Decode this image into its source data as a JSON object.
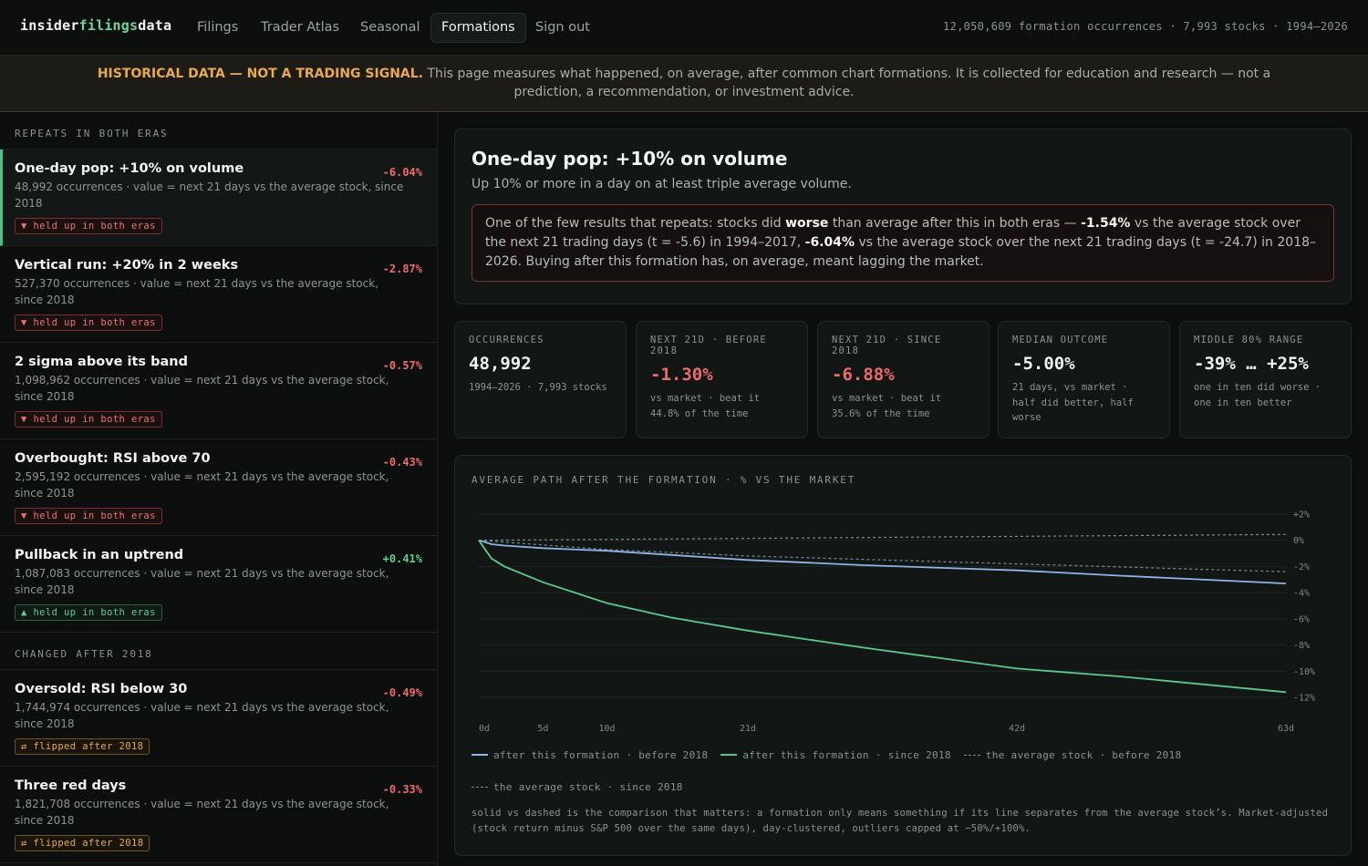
{
  "nav": {
    "logo_pre": "insider",
    "logo_mid": "filings",
    "logo_post": "data",
    "links": [
      "Filings",
      "Trader Atlas",
      "Seasonal",
      "Formations",
      "Sign out"
    ],
    "stats": "12,050,609 formation occurrences · 7,993 stocks · 1994–2026"
  },
  "banner": {
    "strong": "HISTORICAL DATA — NOT A TRADING SIGNAL.",
    "text": "This page measures what happened, on average, after common chart formations. It is collected for education and research — not a prediction, a recommendation, or investment advice."
  },
  "sidebar": {
    "section1": "REPEATS IN BOTH ERAS",
    "section2": "CHANGED AFTER 2018",
    "items": [
      {
        "name": "One-day pop: +10% on volume",
        "value": "-6.04%",
        "dir": "neg",
        "desc": "48,992 occurrences · value = next 21 days vs the average stock, since 2018",
        "tag": "▼ held up in both eras",
        "tag_color": "red"
      },
      {
        "name": "Vertical run: +20% in 2 weeks",
        "value": "-2.87%",
        "dir": "neg",
        "desc": "527,370 occurrences · value = next 21 days vs the average stock, since 2018",
        "tag": "▼ held up in both eras",
        "tag_color": "red"
      },
      {
        "name": "2 sigma above its band",
        "value": "-0.57%",
        "dir": "neg",
        "desc": "1,098,962 occurrences · value = next 21 days vs the average stock, since 2018",
        "tag": "▼ held up in both eras",
        "tag_color": "red"
      },
      {
        "name": "Overbought: RSI above 70",
        "value": "-0.43%",
        "dir": "neg",
        "desc": "2,595,192 occurrences · value = next 21 days vs the average stock, since 2018",
        "tag": "▼ held up in both eras",
        "tag_color": "red"
      },
      {
        "name": "Pullback in an uptrend",
        "value": "+0.41%",
        "dir": "pos",
        "desc": "1,087,083 occurrences · value = next 21 days vs the average stock, since 2018",
        "tag": "▲ held up in both eras",
        "tag_color": "green"
      },
      {
        "name": "Oversold: RSI below 30",
        "value": "-0.49%",
        "dir": "neg",
        "desc": "1,744,974 occurrences · value = next 21 days vs the average stock, since 2018",
        "tag": "⇄ flipped after 2018",
        "tag_color": "amber"
      },
      {
        "name": "Three red days",
        "value": "-0.33%",
        "dir": "neg",
        "desc": "1,821,708 occurrences · value = next 21 days vs the average stock, since 2018",
        "tag": "⇄ flipped after 2018",
        "tag_color": "amber"
      }
    ]
  },
  "hero": {
    "title": "One-day pop: +10% on volume",
    "subtitle": "Up 10% or more in a day on at least triple average volume.",
    "callout_1": "One of the few results that repeats: stocks did ",
    "callout_b1": "worse",
    "callout_2": " than average after this in both eras — ",
    "callout_b2": "-1.54%",
    "callout_3": " vs the average stock over the next 21 trading days (t = -5.6) in 1994–2017, ",
    "callout_b3": "-6.04%",
    "callout_4": " vs the average stock over the next 21 trading days (t = -24.7) in 2018–2026. Buying after this formation has, on average, meant lagging the market."
  },
  "stats": [
    {
      "label": "OCCURRENCES",
      "value": "48,992",
      "neg": false,
      "note": "1994–2026 · 7,993 stocks"
    },
    {
      "label": "NEXT 21D · BEFORE 2018",
      "value": "-1.30%",
      "neg": true,
      "note": "vs market · beat it 44.8% of the time"
    },
    {
      "label": "NEXT 21D · SINCE 2018",
      "value": "-6.88%",
      "neg": true,
      "note": "vs market · beat it 35.6% of the time"
    },
    {
      "label": "MEDIAN OUTCOME",
      "value": "-5.00%",
      "neg": false,
      "note": "21 days, vs market · half did better, half worse"
    },
    {
      "label": "MIDDLE 80% RANGE",
      "value": "-39% … +25%",
      "neg": false,
      "note": "one in ten did worse · one in ten better"
    }
  ],
  "chart": {
    "title": "AVERAGE PATH AFTER THE FORMATION · % VS THE MARKET",
    "footnote": "solid vs dashed is the comparison that matters: a formation only means something if its line separates from the average stock’s. Market-adjusted (stock return minus S&P 500 over the same days), day-clustered, outliers capped at −50%/+100%.",
    "colors": {
      "before": "#8fb4e8",
      "since": "#5bc98e",
      "dash": "#7b8a96",
      "grid": "#1f2724"
    }
  },
  "chart_data": {
    "type": "line",
    "title": "AVERAGE PATH AFTER THE FORMATION · % VS THE MARKET",
    "x_tick_labels": [
      "0d",
      "5d",
      "10d",
      "21d",
      "42d",
      "63d"
    ],
    "x_ticks": [
      0,
      5,
      10,
      21,
      42,
      63
    ],
    "y_tick_labels": [
      "+2%",
      "0%",
      "-2%",
      "-4%",
      "-6%",
      "-8%",
      "-10%",
      "-12%"
    ],
    "y_ticks": [
      2,
      0,
      -2,
      -4,
      -6,
      -8,
      -10,
      -12
    ],
    "xlim": [
      0,
      63
    ],
    "ylim": [
      -12,
      2
    ],
    "series": [
      {
        "name": "after this formation · before 2018",
        "style": "solid",
        "color": "#8fb4e8",
        "x": [
          0,
          1,
          2,
          5,
          10,
          21,
          30,
          42,
          50,
          63
        ],
        "y": [
          0,
          -0.3,
          -0.4,
          -0.6,
          -0.8,
          -1.5,
          -1.9,
          -2.3,
          -2.7,
          -3.3
        ]
      },
      {
        "name": "after this formation · since 2018",
        "style": "solid",
        "color": "#5bc98e",
        "x": [
          0,
          1,
          2,
          5,
          10,
          15,
          21,
          30,
          42,
          50,
          63
        ],
        "y": [
          0,
          -1.4,
          -2.0,
          -3.2,
          -4.8,
          -5.9,
          -6.9,
          -8.2,
          -9.8,
          -10.4,
          -11.6
        ]
      },
      {
        "name": "the average stock · before 2018",
        "style": "dashed",
        "color": "#7b8a96",
        "x": [
          0,
          21,
          42,
          63
        ],
        "y": [
          0,
          0.15,
          0.3,
          0.45
        ]
      },
      {
        "name": "the average stock · since 2018",
        "style": "dashed",
        "color": "#7b8a96",
        "x": [
          0,
          10,
          21,
          42,
          63
        ],
        "y": [
          0,
          -0.7,
          -1.2,
          -1.8,
          -2.4
        ]
      }
    ],
    "grid": true,
    "legend_position": "bottom"
  }
}
